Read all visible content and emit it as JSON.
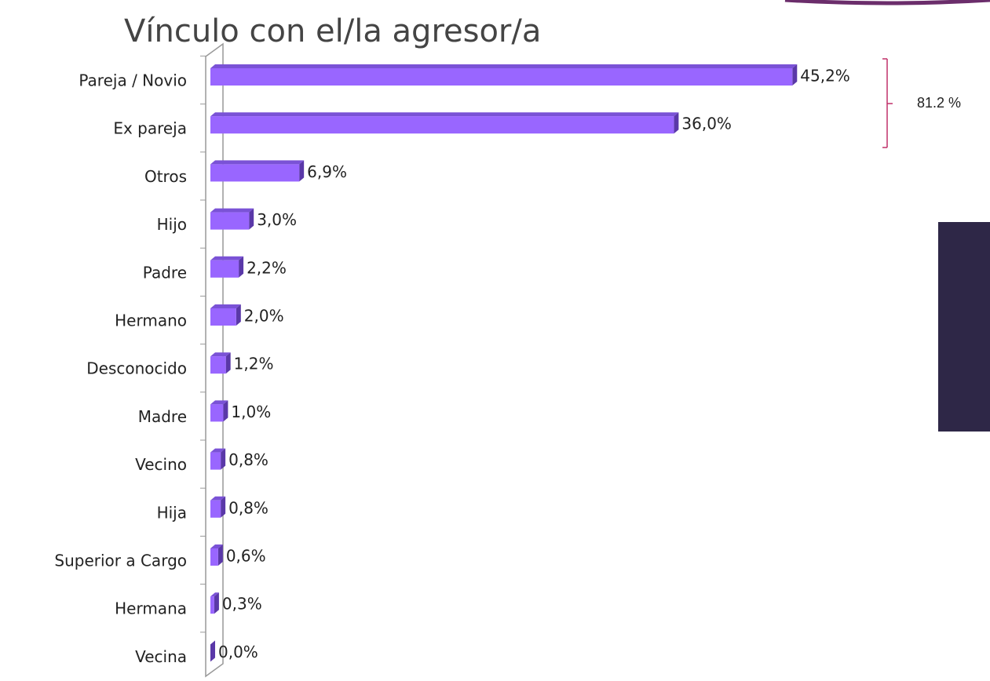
{
  "chart_data": {
    "type": "bar",
    "orientation": "horizontal",
    "title": "Vínculo con el/la agresor/a",
    "categories": [
      "Pareja / Novio",
      "Ex pareja",
      "Otros",
      "Hijo",
      "Padre",
      "Hermano",
      "Desconocido",
      "Madre",
      "Vecino",
      "Hija",
      "Superior a Cargo",
      "Hermana",
      "Vecina"
    ],
    "values": [
      45.2,
      36.0,
      6.9,
      3.0,
      2.2,
      2.0,
      1.2,
      1.0,
      0.8,
      0.8,
      0.6,
      0.3,
      0.0
    ],
    "value_labels": [
      "45,2%",
      "36,0%",
      "6,9%",
      "3,0%",
      "2,2%",
      "2,0%",
      "1,2%",
      "1,0%",
      "0,8%",
      "0,8%",
      "0,6%",
      "0,3%",
      "0,0%"
    ],
    "color": "#9966ff",
    "xlim": [
      0,
      50
    ],
    "annotation": "81.2 %"
  }
}
